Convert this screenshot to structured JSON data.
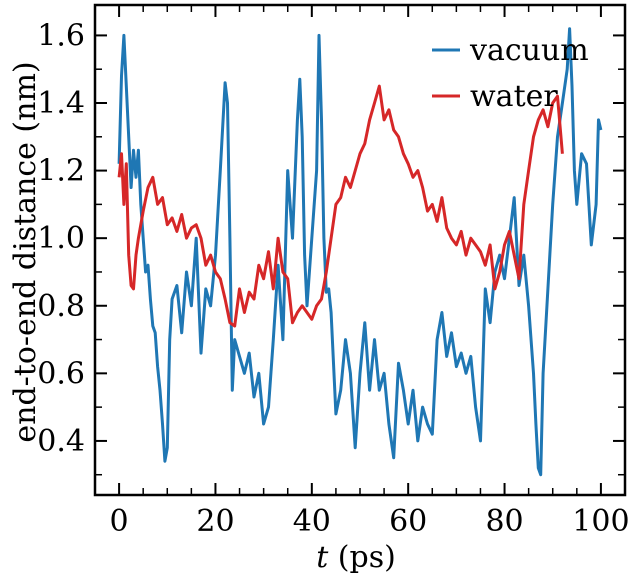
{
  "chart_data": {
    "type": "line",
    "title": "",
    "xlabel_var": "t",
    "xlabel_unit": " (ps)",
    "ylabel": "end-to-end distance (nm)",
    "xlim": [
      -5,
      105
    ],
    "ylim": [
      0.24,
      1.69
    ],
    "x_major_ticks": [
      0,
      20,
      40,
      60,
      80,
      100
    ],
    "x_tick_labels": [
      "0",
      "20",
      "40",
      "60",
      "80",
      "100"
    ],
    "y_major_ticks": [
      0.4,
      0.6,
      0.8,
      1.0,
      1.2,
      1.4,
      1.6
    ],
    "y_tick_labels": [
      "0.4",
      "0.6",
      "0.8",
      "1.0",
      "1.2",
      "1.4",
      "1.6"
    ],
    "x_minor_step": 5,
    "y_minor_step": 0.1,
    "grid": false,
    "legend_position": "top-right",
    "series": [
      {
        "name": "vacuum",
        "color": "#1f77b4",
        "x": [
          0,
          0.5,
          1,
          1.5,
          2,
          2.5,
          3,
          3.5,
          4,
          4.5,
          5,
          5.5,
          6,
          6.5,
          7,
          7.5,
          8,
          8.5,
          9,
          9.5,
          10,
          10.5,
          11,
          12,
          13,
          14,
          15,
          16,
          17,
          18,
          19,
          20,
          21,
          22,
          22.5,
          23,
          23.5,
          24,
          25,
          26,
          27,
          28,
          29,
          30,
          31,
          32,
          33,
          34,
          35,
          36,
          37,
          37.5,
          38,
          38.5,
          39,
          40,
          41,
          41.5,
          42,
          42.5,
          43,
          43.5,
          44,
          45,
          46,
          47,
          48,
          49,
          50,
          51,
          52,
          53,
          54,
          55,
          56,
          57,
          58,
          59,
          60,
          61,
          62,
          63,
          64,
          65,
          66,
          67,
          68,
          69,
          70,
          71,
          72,
          73,
          74,
          75,
          76,
          77,
          78,
          79,
          80,
          81,
          82,
          83,
          84,
          85,
          86,
          86.5,
          87,
          87.5,
          88,
          89,
          90,
          91,
          92,
          93,
          93.5,
          94,
          94.5,
          95,
          96,
          97,
          98,
          99,
          99.5,
          100
        ],
        "y": [
          1.22,
          1.48,
          1.6,
          1.45,
          1.3,
          1.15,
          1.26,
          1.18,
          1.26,
          1.1,
          1.0,
          0.9,
          0.92,
          0.82,
          0.74,
          0.72,
          0.62,
          0.55,
          0.45,
          0.34,
          0.38,
          0.7,
          0.82,
          0.86,
          0.72,
          0.9,
          0.8,
          1.0,
          0.66,
          0.85,
          0.8,
          0.95,
          1.2,
          1.46,
          1.4,
          1.0,
          0.55,
          0.7,
          0.65,
          0.6,
          0.66,
          0.53,
          0.6,
          0.45,
          0.5,
          0.7,
          0.92,
          0.7,
          1.2,
          1.0,
          1.35,
          1.47,
          1.3,
          0.95,
          0.8,
          1.0,
          1.2,
          1.6,
          1.35,
          1.0,
          0.84,
          0.85,
          0.78,
          0.48,
          0.55,
          0.7,
          0.6,
          0.38,
          0.6,
          0.75,
          0.55,
          0.7,
          0.55,
          0.6,
          0.45,
          0.35,
          0.63,
          0.55,
          0.45,
          0.55,
          0.4,
          0.5,
          0.45,
          0.42,
          0.7,
          0.78,
          0.65,
          0.72,
          0.62,
          0.66,
          0.6,
          0.65,
          0.5,
          0.4,
          0.85,
          0.75,
          0.9,
          0.95,
          0.88,
          1.0,
          1.12,
          0.86,
          0.95,
          0.8,
          0.6,
          0.45,
          0.32,
          0.3,
          0.6,
          0.85,
          1.1,
          1.3,
          1.4,
          1.5,
          1.62,
          1.45,
          1.2,
          1.1,
          1.25,
          1.22,
          0.98,
          1.1,
          1.35,
          1.32
        ]
      },
      {
        "name": "water",
        "color": "#d62728",
        "x": [
          0,
          0.5,
          1,
          1.5,
          2,
          2.5,
          3,
          3.5,
          4,
          5,
          6,
          7,
          8,
          9,
          10,
          11,
          12,
          13,
          14,
          15,
          16,
          17,
          18,
          19,
          20,
          21,
          22,
          23,
          24,
          25,
          26,
          27,
          28,
          29,
          30,
          31,
          32,
          33,
          34,
          35,
          36,
          37,
          38,
          39,
          40,
          41,
          42,
          43,
          44,
          45,
          46,
          47,
          48,
          49,
          50,
          51,
          52,
          53,
          54,
          55,
          56,
          57,
          58,
          59,
          60,
          61,
          62,
          63,
          64,
          65,
          66,
          67,
          68,
          69,
          70,
          71,
          72,
          73,
          74,
          75,
          76,
          77,
          78,
          79,
          80,
          81,
          82,
          83,
          84,
          85,
          86,
          87,
          88,
          89,
          90,
          91,
          92
        ],
        "y": [
          1.18,
          1.25,
          1.1,
          1.22,
          0.95,
          0.86,
          0.85,
          0.95,
          1.0,
          1.08,
          1.15,
          1.18,
          1.1,
          1.12,
          1.04,
          1.06,
          1.02,
          1.07,
          1.0,
          1.03,
          1.04,
          1.0,
          0.92,
          0.95,
          0.9,
          0.88,
          0.82,
          0.75,
          0.74,
          0.85,
          0.78,
          0.84,
          0.82,
          0.92,
          0.88,
          0.96,
          0.85,
          1.0,
          0.9,
          0.88,
          0.75,
          0.78,
          0.8,
          0.78,
          0.76,
          0.8,
          0.82,
          0.9,
          1.0,
          1.1,
          1.12,
          1.18,
          1.15,
          1.2,
          1.25,
          1.28,
          1.35,
          1.4,
          1.45,
          1.35,
          1.38,
          1.32,
          1.3,
          1.25,
          1.22,
          1.18,
          1.2,
          1.15,
          1.08,
          1.1,
          1.05,
          1.12,
          1.03,
          1.0,
          0.98,
          1.02,
          0.95,
          1.0,
          0.98,
          0.96,
          0.92,
          0.98,
          0.85,
          0.9,
          0.98,
          1.02,
          0.95,
          0.88,
          1.1,
          1.2,
          1.3,
          1.35,
          1.38,
          1.33,
          1.4,
          1.42,
          1.25
        ]
      }
    ]
  }
}
